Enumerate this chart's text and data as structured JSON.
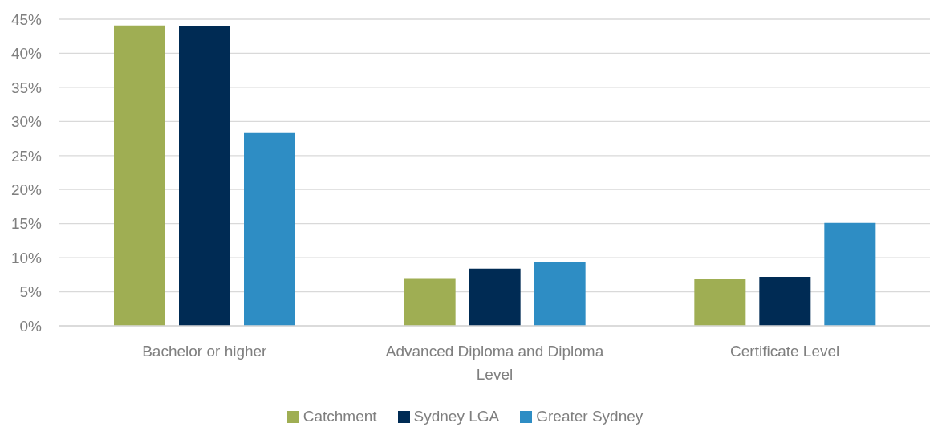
{
  "chart_data": {
    "type": "bar",
    "categories": [
      "Bachelor or higher",
      "Advanced Diploma and Diploma Level",
      "Certificate Level"
    ],
    "series": [
      {
        "name": "Catchment",
        "color": "#9fae53",
        "values": [
          44.1,
          7.0,
          6.9
        ]
      },
      {
        "name": "Sydney LGA",
        "color": "#002b54",
        "values": [
          44.0,
          8.4,
          7.2
        ]
      },
      {
        "name": "Greater Sydney",
        "color": "#2e8dc4",
        "values": [
          28.3,
          9.3,
          15.1
        ]
      }
    ],
    "ylim": [
      0,
      45
    ],
    "yticks": [
      {
        "value": 0,
        "label": "0%"
      },
      {
        "value": 5,
        "label": "5%"
      },
      {
        "value": 10,
        "label": "10%"
      },
      {
        "value": 15,
        "label": "15%"
      },
      {
        "value": 20,
        "label": "20%"
      },
      {
        "value": 25,
        "label": "25%"
      },
      {
        "value": 30,
        "label": "30%"
      },
      {
        "value": 35,
        "label": "35%"
      },
      {
        "value": 40,
        "label": "40%"
      },
      {
        "value": 45,
        "label": "45%"
      }
    ],
    "grid": "y",
    "legend": "bottom"
  }
}
